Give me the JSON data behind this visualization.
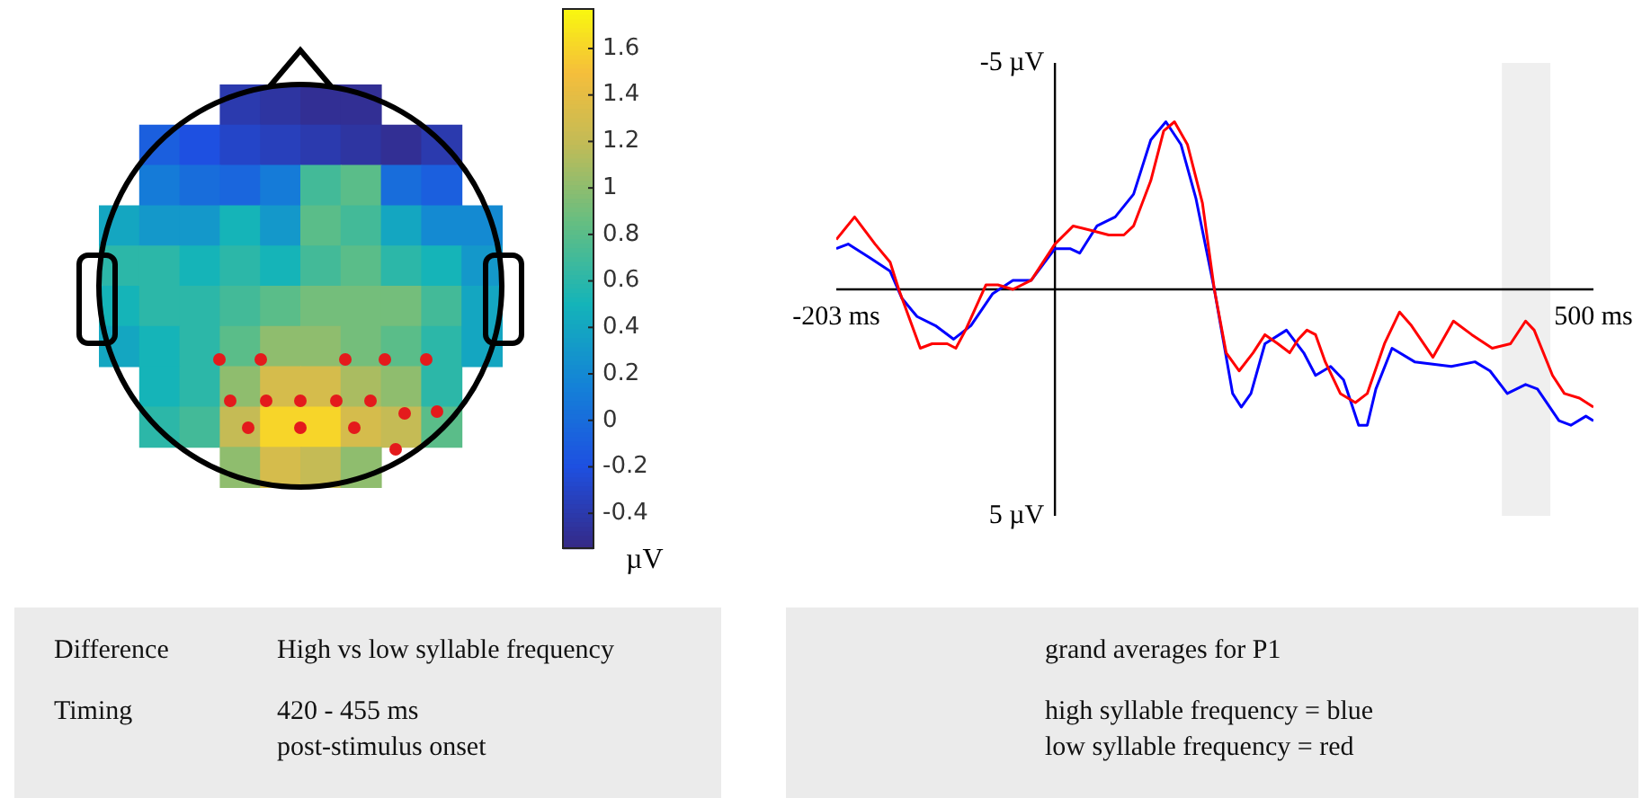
{
  "chart_data": [
    {
      "type": "heatmap",
      "clabel": "µV",
      "categories": [
        null,
        null,
        null,
        null,
        null,
        null,
        null,
        null,
        null,
        null
      ],
      "y_categories": [
        null,
        null,
        null,
        null,
        null,
        null,
        null,
        null,
        null,
        null
      ],
      "cells": [
        [
          null,
          null,
          null,
          -0.4,
          -0.45,
          -0.5,
          -0.5,
          null,
          null,
          null
        ],
        [
          null,
          -0.1,
          -0.2,
          -0.3,
          -0.35,
          -0.4,
          -0.45,
          -0.5,
          -0.4,
          null
        ],
        [
          null,
          0.1,
          0.0,
          -0.05,
          0.1,
          0.7,
          0.8,
          0.0,
          -0.1,
          null
        ],
        [
          0.4,
          0.3,
          0.3,
          0.5,
          0.3,
          0.8,
          0.7,
          0.4,
          0.2,
          0.2
        ],
        [
          0.6,
          0.6,
          0.5,
          0.6,
          0.5,
          0.7,
          0.8,
          0.6,
          0.5,
          0.3
        ],
        [
          0.5,
          0.6,
          0.6,
          0.7,
          0.8,
          0.9,
          0.9,
          0.9,
          0.7,
          0.4
        ],
        [
          0.4,
          0.5,
          0.6,
          0.8,
          1.0,
          1.0,
          0.9,
          0.8,
          0.6,
          0.4
        ],
        [
          null,
          0.5,
          0.6,
          1.0,
          1.3,
          1.3,
          1.1,
          1.0,
          0.6,
          null
        ],
        [
          null,
          0.6,
          0.7,
          1.2,
          1.6,
          1.6,
          1.3,
          1.2,
          0.8,
          null
        ],
        [
          null,
          null,
          null,
          1.0,
          1.3,
          1.2,
          1.0,
          null,
          null,
          null
        ]
      ],
      "clim": [
        -0.55,
        1.77
      ],
      "cticks": [
        -0.4,
        -0.2,
        0,
        0.2,
        0.4,
        0.6,
        0.8,
        1,
        1.2,
        1.4,
        1.6
      ]
    },
    {
      "type": "line",
      "xlim": [
        -203,
        500
      ],
      "ylim": [
        5,
        -5
      ],
      "xticks": [
        {
          "value": -203,
          "label": "-203 ms"
        },
        {
          "value": 500,
          "label": "500 ms"
        }
      ],
      "yticks": [
        {
          "value": -5,
          "label": "-5 µV"
        },
        {
          "value": 5,
          "label": "5 µV"
        }
      ],
      "bands": [
        {
          "axis": "x",
          "from": 415,
          "to": 460,
          "color": "#efefef"
        }
      ],
      "series": [
        {
          "color": "#ff0000",
          "x": [
            -203,
            -186,
            -167,
            -153,
            -145,
            -125,
            -114,
            -100,
            -92,
            -83,
            -64,
            -53,
            -39,
            -22,
            0,
            17,
            34,
            50,
            64,
            73,
            89,
            101,
            111,
            123,
            137,
            148,
            159,
            171,
            184,
            195,
            207,
            218,
            226,
            234,
            242,
            251,
            265,
            279,
            290,
            306,
            320,
            331,
            351,
            370,
            387,
            406,
            423,
            437,
            445,
            462,
            473,
            487,
            500
          ],
          "values": [
            -1.1,
            -1.6,
            -1.0,
            -0.6,
            0.0,
            1.3,
            1.2,
            1.2,
            1.3,
            0.9,
            -0.1,
            -0.1,
            0.0,
            -0.2,
            -1.0,
            -1.4,
            -1.3,
            -1.2,
            -1.2,
            -1.4,
            -2.4,
            -3.5,
            -3.7,
            -3.2,
            -1.9,
            0.0,
            1.4,
            1.8,
            1.4,
            1.0,
            1.2,
            1.4,
            1.1,
            0.9,
            1.0,
            1.6,
            2.3,
            2.5,
            2.3,
            1.2,
            0.5,
            0.8,
            1.5,
            0.7,
            1.0,
            1.3,
            1.2,
            0.7,
            0.9,
            1.9,
            2.3,
            2.4,
            2.6
          ]
        },
        {
          "color": "#0000ff",
          "x": [
            -203,
            -192,
            -172,
            -153,
            -142,
            -128,
            -111,
            -94,
            -78,
            -58,
            -39,
            -22,
            0,
            14,
            23,
            39,
            56,
            73,
            89,
            103,
            117,
            131,
            148,
            165,
            173,
            182,
            195,
            215,
            231,
            242,
            256,
            268,
            282,
            290,
            298,
            313,
            334,
            368,
            390,
            404,
            420,
            437,
            448,
            468,
            479,
            493,
            500
          ],
          "values": [
            -0.9,
            -1.0,
            -0.7,
            -0.4,
            0.2,
            0.6,
            0.8,
            1.1,
            0.8,
            0.1,
            -0.2,
            -0.2,
            -0.9,
            -0.9,
            -0.8,
            -1.4,
            -1.6,
            -2.1,
            -3.3,
            -3.7,
            -3.2,
            -2.0,
            0.0,
            2.3,
            2.6,
            2.3,
            1.2,
            0.9,
            1.4,
            1.9,
            1.7,
            2.0,
            3.0,
            3.0,
            2.2,
            1.3,
            1.6,
            1.7,
            1.6,
            1.8,
            2.3,
            2.1,
            2.2,
            2.9,
            3.0,
            2.8,
            2.9
          ]
        }
      ]
    },
    {
      "type": "other",
      "annotations": [
        "Difference",
        "High vs low syllable frequency",
        "Timing",
        "420 - 455 ms",
        "post-stimulus onset"
      ]
    },
    {
      "type": "other",
      "title": "grand averages for P1",
      "annotations": [
        "high syllable frequency = blue",
        "low syllable frequency = red"
      ]
    }
  ]
}
